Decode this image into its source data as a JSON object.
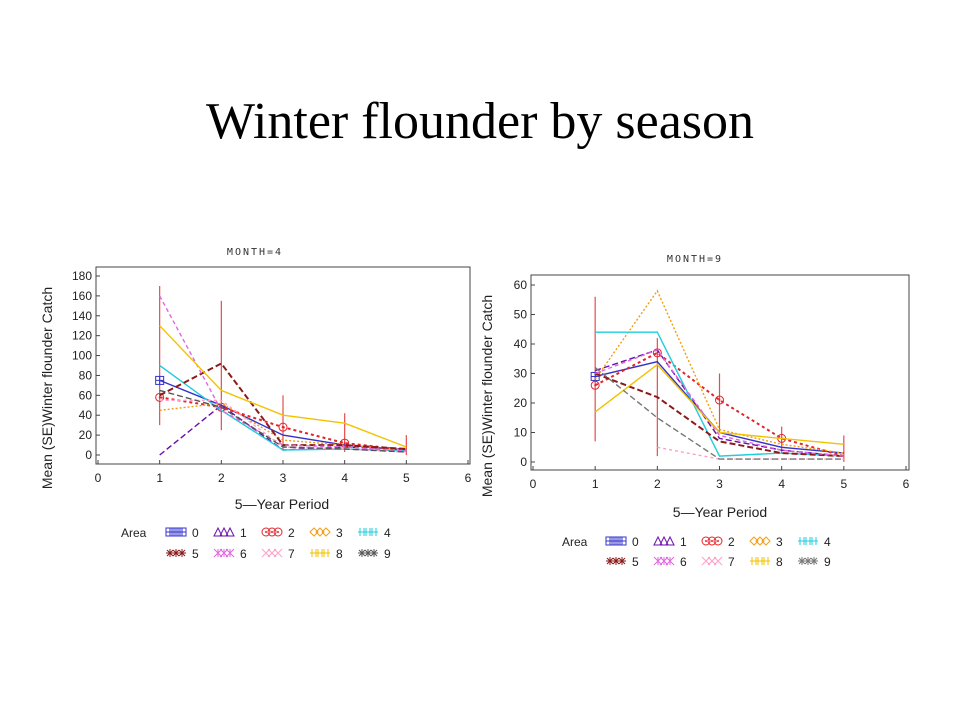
{
  "slide": {
    "title": "Winter flounder by season"
  },
  "chart_data": [
    {
      "type": "line",
      "title": "MONTH=4",
      "xlabel": "5—Year Period",
      "ylabel": "Mean (SE)Winter flounder Catch",
      "xlim": [
        0,
        6
      ],
      "ylim": [
        0,
        180
      ],
      "xticks": [
        0,
        1,
        2,
        3,
        4,
        5,
        6
      ],
      "yticks": [
        0,
        20,
        40,
        60,
        80,
        100,
        120,
        140,
        160,
        180
      ],
      "legend_title": "Area",
      "series": [
        {
          "name": "0",
          "color": "#3333cc",
          "dash": "",
          "x": [
            1,
            2,
            3,
            4,
            5
          ],
          "y": [
            75,
            50,
            20,
            10,
            5
          ]
        },
        {
          "name": "1",
          "color": "#6a0dad",
          "dash": "6,3",
          "x": [
            1,
            2,
            3,
            4,
            5
          ],
          "y": [
            0,
            50,
            5,
            8,
            6
          ]
        },
        {
          "name": "2",
          "color": "#e3242b",
          "dash": "3,3",
          "x": [
            1,
            2,
            3,
            4,
            5
          ],
          "y": [
            58,
            48,
            28,
            12,
            5
          ]
        },
        {
          "name": "3",
          "color": "#f39c12",
          "dash": "2,2",
          "x": [
            1,
            2,
            3,
            4,
            5
          ],
          "y": [
            45,
            52,
            15,
            10,
            5
          ]
        },
        {
          "name": "4",
          "color": "#22ccdd",
          "dash": "",
          "x": [
            1,
            2,
            3,
            4,
            5
          ],
          "y": [
            90,
            45,
            5,
            6,
            4
          ]
        },
        {
          "name": "5",
          "color": "#8b1a1a",
          "dash": "6,3",
          "x": [
            1,
            2,
            3,
            4,
            5
          ],
          "y": [
            60,
            92,
            10,
            10,
            6
          ]
        },
        {
          "name": "6",
          "color": "#e066e0",
          "dash": "4,3",
          "x": [
            1,
            2,
            3,
            4,
            5
          ],
          "y": [
            160,
            45,
            10,
            8,
            4
          ]
        },
        {
          "name": "7",
          "color": "#ff9fc5",
          "dash": "3,3",
          "x": [
            1,
            2,
            3,
            4,
            5
          ],
          "y": [
            55,
            55,
            8,
            6,
            3
          ]
        },
        {
          "name": "8",
          "color": "#f2c200",
          "dash": "",
          "x": [
            1,
            2,
            3,
            4,
            5
          ],
          "y": [
            130,
            65,
            40,
            32,
            8
          ]
        },
        {
          "name": "9",
          "color": "#555555",
          "dash": "6,3",
          "x": [
            1,
            2,
            3,
            4,
            5
          ],
          "y": [
            65,
            48,
            8,
            6,
            3
          ]
        }
      ],
      "error_bars": [
        {
          "x": 1,
          "low": 30,
          "high": 170
        },
        {
          "x": 2,
          "low": 25,
          "high": 155
        },
        {
          "x": 3,
          "low": 5,
          "high": 60
        },
        {
          "x": 4,
          "low": 3,
          "high": 42
        },
        {
          "x": 5,
          "low": 0,
          "high": 20
        }
      ]
    },
    {
      "type": "line",
      "title": "MONTH=9",
      "xlabel": "5—Year Period",
      "ylabel": "Mean (SE)Winter flounder Catch",
      "xlim": [
        0,
        6
      ],
      "ylim": [
        0,
        60
      ],
      "xticks": [
        0,
        1,
        2,
        3,
        4,
        5,
        6
      ],
      "yticks": [
        0,
        10,
        20,
        30,
        40,
        50,
        60
      ],
      "legend_title": "Area",
      "series": [
        {
          "name": "0",
          "color": "#3333cc",
          "dash": "",
          "x": [
            1,
            2,
            3,
            4,
            5
          ],
          "y": [
            29,
            34,
            10,
            5,
            3
          ]
        },
        {
          "name": "1",
          "color": "#6a0dad",
          "dash": "6,3",
          "x": [
            1,
            2,
            3,
            4,
            5
          ],
          "y": [
            31,
            38,
            8,
            4,
            2
          ]
        },
        {
          "name": "2",
          "color": "#e3242b",
          "dash": "3,3",
          "x": [
            1,
            2,
            3,
            4,
            5
          ],
          "y": [
            26,
            37,
            21,
            8,
            2
          ]
        },
        {
          "name": "3",
          "color": "#f39c12",
          "dash": "2,2",
          "x": [
            1,
            2,
            3,
            4,
            5
          ],
          "y": [
            28,
            58,
            11,
            6,
            3
          ]
        },
        {
          "name": "4",
          "color": "#22ccdd",
          "dash": "",
          "x": [
            1,
            2,
            3,
            4,
            5
          ],
          "y": [
            44,
            44,
            2,
            3,
            2
          ]
        },
        {
          "name": "5",
          "color": "#8b1a1a",
          "dash": "6,3",
          "x": [
            1,
            2,
            3,
            4,
            5
          ],
          "y": [
            30,
            22,
            7,
            3,
            2
          ]
        },
        {
          "name": "6",
          "color": "#e066e0",
          "dash": "4,3",
          "x": [
            1,
            2,
            3,
            4,
            5
          ],
          "y": [
            30,
            38,
            9,
            4,
            2
          ]
        },
        {
          "name": "7",
          "color": "#ff9fc5",
          "dash": "3,3",
          "x": [
            1,
            2,
            3,
            4,
            5
          ],
          "y": [
            null,
            5,
            1,
            1,
            1
          ]
        },
        {
          "name": "8",
          "color": "#f2c200",
          "dash": "",
          "x": [
            1,
            2,
            3,
            4,
            5
          ],
          "y": [
            17,
            33,
            10,
            8,
            6
          ]
        },
        {
          "name": "9",
          "color": "#777777",
          "dash": "6,3",
          "x": [
            1,
            2,
            3,
            4,
            5
          ],
          "y": [
            32,
            15,
            1,
            1,
            1
          ]
        }
      ],
      "error_bars": [
        {
          "x": 1,
          "low": 7,
          "high": 56
        },
        {
          "x": 2,
          "low": 2,
          "high": 42
        },
        {
          "x": 3,
          "low": 10,
          "high": 30
        },
        {
          "x": 4,
          "low": 3,
          "high": 12
        },
        {
          "x": 5,
          "low": 0,
          "high": 9
        }
      ]
    }
  ]
}
